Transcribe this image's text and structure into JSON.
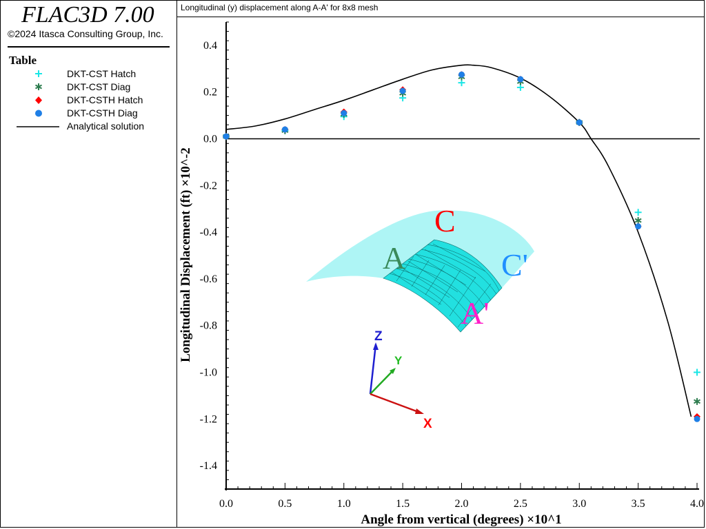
{
  "app": {
    "title": "FLAC3D 7.00",
    "copyright": "©2024 Itasca Consulting Group, Inc."
  },
  "legend": {
    "title": "Table",
    "items": [
      {
        "label": "DKT-CST Hatch",
        "symbol": "plus",
        "color": "#19e6e6"
      },
      {
        "label": "DKT-CST Diag",
        "symbol": "asterisk",
        "color": "#2e7d4f"
      },
      {
        "label": "DKT-CSTH Hatch",
        "symbol": "diamond",
        "color": "#ff0000"
      },
      {
        "label": "DKT-CSTH Diag",
        "symbol": "circle",
        "color": "#1f7fe6"
      },
      {
        "label": "Analytical solution",
        "symbol": "line",
        "color": "#000000"
      }
    ]
  },
  "plot": {
    "title": "Longitudinal (y) displacement along A-A' for 8x8 mesh"
  },
  "chart_data": {
    "type": "scatter",
    "title": "Longitudinal (y) displacement along A-A' for 8x8 mesh",
    "xlabel": "Angle from vertical (degrees) ×10^1",
    "ylabel": "Longitudinal Displacement (ft) ×10^-2",
    "xlim": [
      0.0,
      4.0
    ],
    "ylim": [
      -1.5,
      0.5
    ],
    "xticks": [
      "0.0",
      "0.5",
      "1.0",
      "1.5",
      "2.0",
      "2.5",
      "3.0",
      "3.5",
      "4.0"
    ],
    "yticks": [
      "0.4",
      "0.2",
      "0.0",
      "-0.2",
      "-0.4",
      "-0.6",
      "-0.8",
      "-1.0",
      "-1.2",
      "-1.4"
    ],
    "x": [
      0.0,
      0.5,
      1.0,
      1.5,
      2.0,
      2.5,
      3.0,
      3.5,
      4.0
    ],
    "series": [
      {
        "name": "DKT-CST Hatch",
        "marker": "plus",
        "color": "#19e6e6",
        "values": [
          0.01,
          0.035,
          0.095,
          0.175,
          0.24,
          0.22,
          0.07,
          -0.315,
          -1.0
        ]
      },
      {
        "name": "DKT-CST Diag",
        "marker": "asterisk",
        "color": "#2e7d4f",
        "values": [
          0.01,
          0.035,
          0.105,
          0.195,
          0.265,
          0.245,
          0.07,
          -0.35,
          -1.125
        ]
      },
      {
        "name": "DKT-CSTH Hatch",
        "marker": "diamond",
        "color": "#ff0000",
        "values": [
          0.01,
          0.04,
          0.115,
          0.21,
          0.275,
          0.255,
          0.07,
          -0.375,
          -1.19
        ]
      },
      {
        "name": "DKT-CSTH Diag",
        "marker": "circle",
        "color": "#1f7fe6",
        "values": [
          0.01,
          0.04,
          0.11,
          0.205,
          0.275,
          0.255,
          0.07,
          -0.375,
          -1.2
        ]
      },
      {
        "name": "Analytical solution",
        "marker": "line",
        "color": "#000000",
        "x": [
          0.0,
          0.25,
          0.5,
          0.75,
          1.0,
          1.25,
          1.5,
          1.75,
          2.0,
          2.1,
          2.25,
          2.5,
          2.75,
          3.0,
          3.1,
          3.25,
          3.5,
          3.75,
          3.95
        ],
        "values": [
          0.04,
          0.055,
          0.085,
          0.125,
          0.165,
          0.21,
          0.255,
          0.295,
          0.315,
          0.315,
          0.305,
          0.26,
          0.18,
          0.07,
          0.0,
          -0.12,
          -0.4,
          -0.78,
          -1.19
        ]
      }
    ],
    "grid": false,
    "legend_placement": "left panel",
    "inset": {
      "labels": [
        {
          "text": "C",
          "color": "#ff0000"
        },
        {
          "text": "A",
          "color": "#3a8a5a"
        },
        {
          "text": "C'",
          "color": "#1f8fff"
        },
        {
          "text": "A'",
          "color": "#ff1ec8"
        }
      ],
      "axes": [
        {
          "text": "Z",
          "color": "#1f1fd0"
        },
        {
          "text": "Y",
          "color": "#22bb22"
        },
        {
          "text": "X",
          "color": "#ff0000"
        }
      ]
    }
  }
}
